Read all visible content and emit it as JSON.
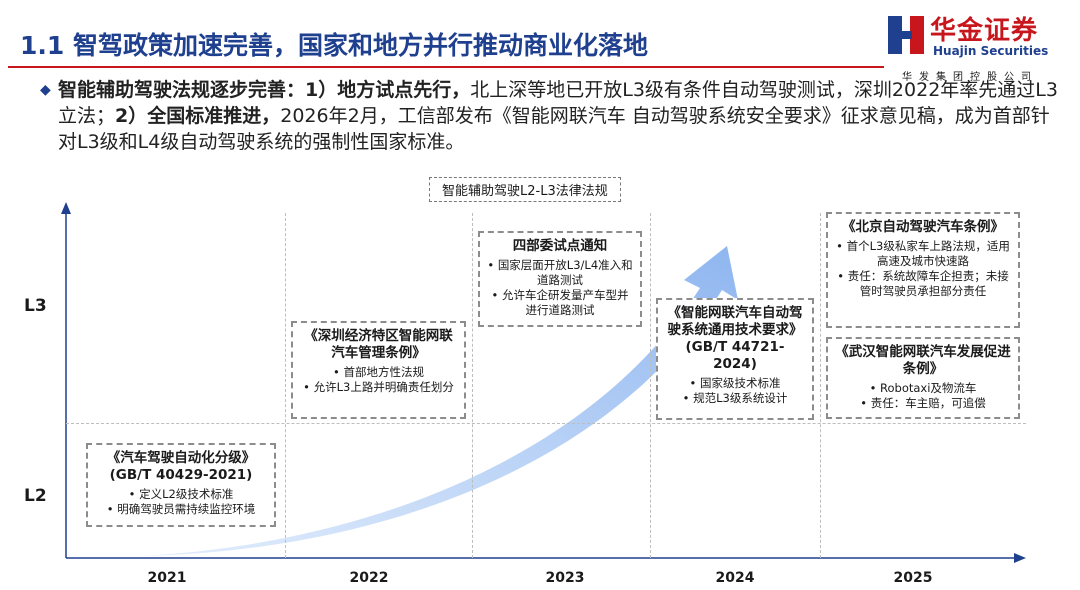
{
  "title": "1.1 智驾政策加速完善，国家和地方并行推动商业化落地",
  "logo": {
    "cn": "华金证券",
    "en": "Huajin Securities",
    "sub": "华发集团控股公司"
  },
  "intro": {
    "lead": "智能辅助驾驶法规逐步完善：",
    "p1_bold": "1）地方试点先行，",
    "p1": "北上深等地已开放L3级有条件自动驾驶测试，深圳2022年率先通过L3立法；",
    "p2_bold": "2）全国标准推进，",
    "p2": "2026年2月，工信部发布《智能网联汽车 自动驾驶系统安全要求》征求意见稿，成为首部针对L3级和L4级自动驾驶系统的强制性国家标准。"
  },
  "timeline": {
    "label": "智能辅助驾驶L2-L3法律法规",
    "levels": [
      "L3",
      "L2"
    ],
    "years": [
      "2021",
      "2022",
      "2023",
      "2024",
      "2025"
    ],
    "items": [
      {
        "title": "《汽车驾驶自动化分级》(GB/T 40429-2021)",
        "bullets": [
          "定义L2级技术标准",
          "明确驾驶员需持续监控环境"
        ]
      },
      {
        "title": "《深圳经济特区智能网联汽车管理条例》",
        "bullets": [
          "首部地方性法规",
          "允许L3上路并明确责任划分"
        ]
      },
      {
        "title": "四部委试点通知",
        "bullets": [
          "国家层面开放L3/L4准入和道路测试",
          "允许车企研发量产车型并进行道路测试"
        ]
      },
      {
        "title": "《智能网联汽车自动驾驶系统通用技术要求》(GB/T 44721-2024)",
        "bullets": [
          "国家级技术标准",
          "规范L3级系统设计"
        ]
      },
      {
        "title": "《北京自动驾驶汽车条例》",
        "bullets": [
          "首个L3级私家车上路法规，适用高速及城市快速路",
          "责任：系统故障车企担责；未接管时驾驶员承担部分责任"
        ]
      },
      {
        "title": "《武汉智能网联汽车发展促进条例》",
        "bullets": [
          "Robotaxi及物流车",
          "责任：车主赔，可追偿"
        ]
      }
    ]
  },
  "colors": {
    "title_blue": "#1f3f8f",
    "brand_red": "#c8161d",
    "arrow_blue": "#9fc2f4"
  }
}
